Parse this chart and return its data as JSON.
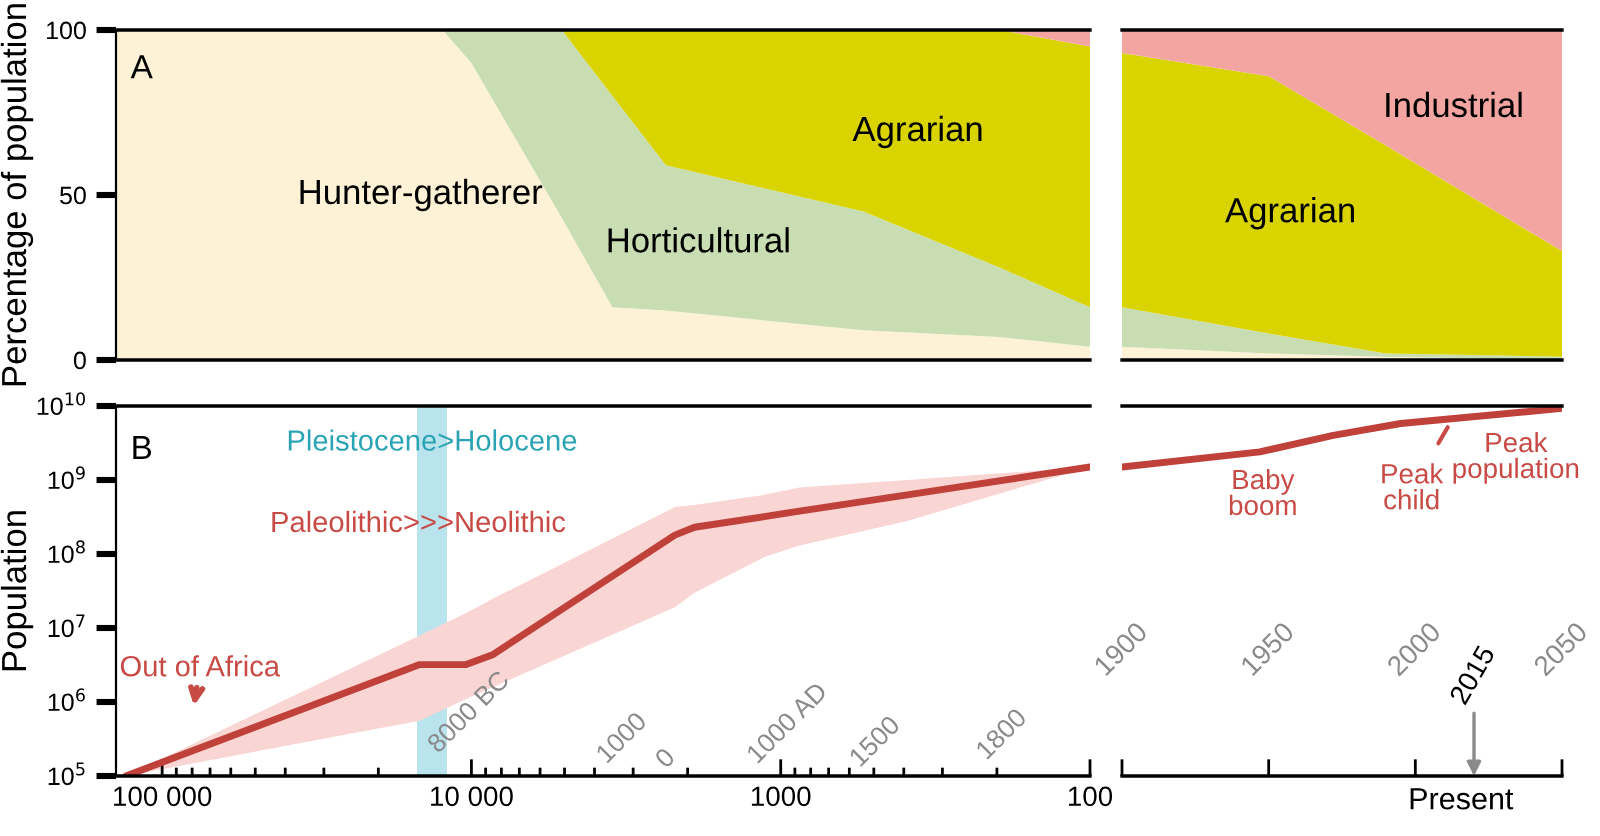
{
  "chart_data": [
    {
      "type": "area",
      "stacked": true,
      "log": "x",
      "ylabel": "Percentage of population",
      "x": [
        141000,
        12400,
        10000,
        5100,
        3500,
        2350,
        540,
        196,
        100
      ],
      "xlim": [
        141000,
        100
      ],
      "ylim": [
        0,
        100
      ],
      "yticks": [
        0,
        50,
        100
      ],
      "tick_labels": "y",
      "annotations": [
        "A"
      ],
      "series": [
        {
          "name": "Hunter-gatherer",
          "color": "#fdf2d6",
          "values": [
            100,
            100,
            90,
            43,
            16,
            15,
            9,
            7,
            4
          ]
        },
        {
          "name": "Horticultural",
          "color": "#c8ddb2",
          "values": [
            0,
            0,
            10,
            57,
            64,
            44,
            36,
            21,
            12
          ]
        },
        {
          "name": "Agrarian",
          "color": "#d9d400",
          "values": [
            0,
            0,
            0,
            0,
            20,
            41,
            55,
            72,
            79
          ]
        },
        {
          "color": "#f3a6a1",
          "values": [
            0,
            0,
            0,
            0,
            0,
            0,
            0,
            0,
            5
          ]
        }
      ]
    },
    {
      "type": "area",
      "stacked": true,
      "x": [
        1900,
        1950,
        1990,
        2050
      ],
      "xlim": [
        1900,
        2050
      ],
      "ylim": [
        0,
        100
      ],
      "tick_labels": false,
      "series": [
        {
          "color": "#fdf2d6",
          "values": [
            4,
            2,
            1,
            0
          ]
        },
        {
          "color": "#c8ddb2",
          "values": [
            12,
            6,
            1,
            1
          ]
        },
        {
          "name": "Agrarian",
          "color": "#d9d400",
          "values": [
            77,
            78,
            63,
            32
          ]
        },
        {
          "name": "Industrial",
          "color": "#f3a6a1",
          "values": [
            7,
            14,
            35,
            67
          ]
        }
      ]
    },
    {
      "type": "line",
      "log": "xy",
      "ylabel": "Population",
      "x": [
        131000,
        14700,
        10400,
        8500,
        2200,
        1900,
        1130,
        870,
        390,
        100
      ],
      "xlim": [
        141000,
        100
      ],
      "ylim": [
        100000,
        10000000000
      ],
      "xticks": [
        {
          "value": 100000,
          "label": "100 000"
        },
        {
          "value": 10000,
          "label": "10 000"
        },
        1000,
        100
      ],
      "yticks": [
        {
          "value": 100000,
          "label": "10$^{5}$"
        },
        {
          "value": 1000000,
          "label": "10$^{6}$"
        },
        {
          "value": 10000000,
          "label": "10$^{7}$"
        },
        {
          "value": 100000000,
          "label": "10$^{8}$"
        },
        {
          "value": 1000000000,
          "label": "10$^{9}$"
        },
        {
          "value": 10000000000,
          "label": "10$^{10}$"
        }
      ],
      "bands": [
        {
          "axis": "x",
          "from": 15000,
          "to": 12000,
          "label": "Pleistocene>Holocene",
          "color": "#a8dce8"
        }
      ],
      "annotations": [
        "B",
        "Paleolithic>>>Neolithic",
        "Out of Africa",
        "8000 BC",
        "1000",
        "0",
        "1000 AD",
        "1500",
        "1800"
      ],
      "series": [
        {
          "color": "#c0403a",
          "values": [
            100000,
            3200000,
            3200000,
            4400000,
            180000000,
            230000000,
            320000000,
            380000000,
            630000000,
            1500000000
          ],
          "upper": [
            100000,
            7900000,
            16000000,
            25000000,
            430000000,
            460000000,
            630000000,
            790000000,
            1000000000,
            1500000000
          ],
          "lower": [
            100000,
            560000,
            1100000,
            1600000,
            19000000,
            30000000,
            91000000,
            130000000,
            280000000,
            1500000000
          ]
        }
      ]
    },
    {
      "type": "line",
      "log": "y",
      "xlabel": "Present",
      "x": [
        1900,
        1947,
        1972,
        1995,
        2050
      ],
      "xlim": [
        1900,
        2050
      ],
      "ylim": [
        100000,
        10000000000
      ],
      "xticks": [
        1900,
        1950,
        2000,
        2050
      ],
      "tick_labels": "x",
      "annotations": [
        "Baby boom",
        "Peak population",
        {
          "text": "Peak child",
          "x": 2012,
          "y": 6000000000
        },
        "2015"
      ],
      "series": [
        {
          "color": "#c0403a",
          "values": [
            1500000000,
            2400000000,
            4000000000,
            5800000000,
            9300000000
          ]
        }
      ]
    }
  ]
}
